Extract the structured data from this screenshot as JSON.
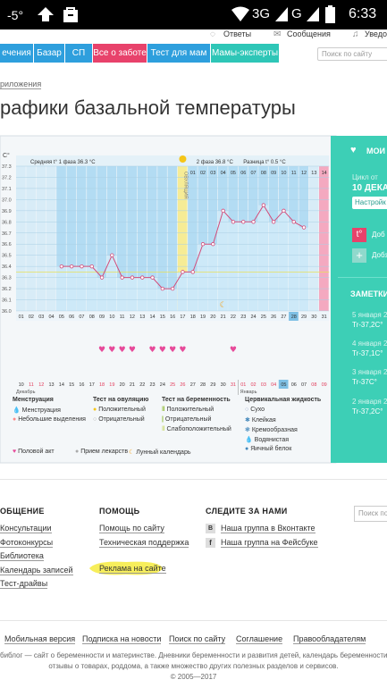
{
  "status_bar": {
    "signal_left": "-5°",
    "network": "3G",
    "carrier_g": "G",
    "time": "6:33"
  },
  "top_links": {
    "answers": "Ответы",
    "messages": "Сообщения",
    "notifications": "Уведо"
  },
  "nav": {
    "items": [
      "ечения",
      "Базар",
      "СП",
      "Все о заботе",
      "Тест для мам",
      "Мамы-эксперты"
    ],
    "search_placeholder": "Поиск по сайту"
  },
  "breadcrumb": "риложения",
  "page_title": "рафики базальной температуры",
  "chart_data": {
    "type": "line",
    "ylabel": "C°",
    "yticks": [
      "37.3",
      "37.2",
      "37.1",
      "37.0",
      "36.9",
      "36.8",
      "36.7",
      "36.6",
      "36.5",
      "36.4",
      "36.3",
      "36.2",
      "36.1",
      "36.0"
    ],
    "ylim": [
      36.0,
      37.3
    ],
    "phase1_label": "Средняя t° 1 фаза 36.3 °C",
    "phase2_label": "2 фаза 36.8 °C",
    "diff_label": "Разница t° 0.5 °C",
    "ovulation_label": "ОВУЛЯЦИЯ",
    "phase2_days": [
      "01",
      "02",
      "03",
      "04",
      "05",
      "06",
      "07",
      "08",
      "09",
      "10",
      "11",
      "12",
      "13",
      "14"
    ],
    "cycle_days": [
      "01",
      "02",
      "03",
      "04",
      "05",
      "06",
      "07",
      "08",
      "09",
      "10",
      "11",
      "12",
      "13",
      "14",
      "15",
      "16",
      "17",
      "18",
      "19",
      "20",
      "21",
      "22",
      "23",
      "24",
      "25",
      "26",
      "27",
      "28",
      "29",
      "30",
      "31"
    ],
    "dates_top": [
      "10",
      "11",
      "12",
      "13",
      "14",
      "15",
      "16",
      "17",
      "18",
      "19",
      "20",
      "21",
      "22",
      "23",
      "24",
      "25",
      "26",
      "27",
      "28",
      "29",
      "30",
      "31",
      "01",
      "02",
      "03",
      "04",
      "05",
      "06",
      "07",
      "08",
      "09"
    ],
    "month1": "Декабрь",
    "month2": "Январь",
    "temps": [
      null,
      null,
      null,
      null,
      36.4,
      36.4,
      36.4,
      36.4,
      36.3,
      36.5,
      36.3,
      36.3,
      36.3,
      36.3,
      36.2,
      36.2,
      36.35,
      36.35,
      36.6,
      36.6,
      36.9,
      36.8,
      36.8,
      36.8,
      36.95,
      36.8,
      36.9,
      36.8,
      36.75,
      null,
      null
    ],
    "intercourse_days": [
      8,
      9,
      10,
      11,
      13,
      14,
      15,
      16,
      21
    ],
    "moon_day": 20,
    "highlight_day": 27
  },
  "legend": {
    "col1": {
      "title": "Менструация",
      "items": [
        "Менструация",
        "Небольшие выделения"
      ]
    },
    "col2": {
      "title": "Тест на овуляцию",
      "items": [
        "Положительный",
        "Отрицательный"
      ]
    },
    "col3": {
      "title": "Тест на беременность",
      "items": [
        "Положительный",
        "Отрицательный",
        "Слабоположительный"
      ]
    },
    "col4": {
      "title": "Цервикальная жидкость",
      "items": [
        "Сухо",
        "Клейкая",
        "Кремообразная",
        "Водянистая",
        "Яичный белок"
      ]
    },
    "bottom": [
      "Половой акт",
      "Прием лекарств",
      "Лунный календарь"
    ]
  },
  "right_panel": {
    "title": "МОИ П",
    "cycle_label": "Цикл от",
    "cycle_date": "10 ДЕКА",
    "settings": "Настройк",
    "add1": "Доб",
    "add2": "Добз",
    "notes_title": "ЗАМЕТКИ",
    "notes": [
      {
        "date": "5 января 2",
        "temp": "Tr-37,2C°"
      },
      {
        "date": "4 января 20",
        "temp": "Tr-37,1C°"
      },
      {
        "date": "3 января 20",
        "temp": "Tr-37C°"
      },
      {
        "date": "2 января 20",
        "temp": "Tr-37,2C°"
      }
    ]
  },
  "footer": {
    "col1": {
      "title": "ОБЩЕНИЕ",
      "links": [
        "Консультации",
        "Фотоконкурсы",
        "Библиотека",
        "Календарь записей",
        "Тест-драйвы"
      ]
    },
    "col2": {
      "title": "ПОМОЩЬ",
      "links": [
        "Помощь по сайту",
        "Техническая поддержка",
        "Реклама на сайте"
      ]
    },
    "col3": {
      "title": "СЛЕДИТЕ ЗА НАМИ",
      "links": [
        "Наша группа в Вконтакте",
        "Наша группа на Фейсбуке"
      ]
    },
    "search_placeholder": "Поиск по",
    "bottom_links": [
      "Мобильная версия",
      "Подписка на новости",
      "Поиск по сайту",
      "Соглашение",
      "Правообладателям"
    ],
    "about": "библог — сайт о беременности и материнстве. Дневники беременности и развития детей, календарь беременности,",
    "about2": "отзывы о товарах, роддома, а также множество других полезных разделов и сервисов.",
    "copyright": "© 2005—2017"
  }
}
